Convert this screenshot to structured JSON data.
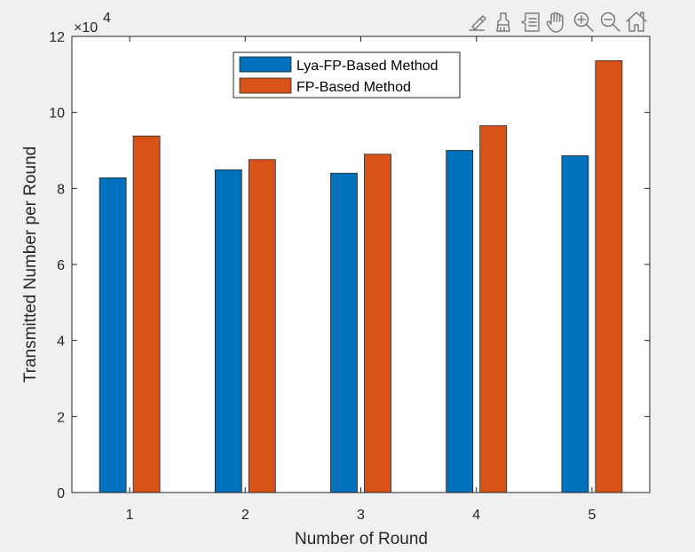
{
  "chart_data": {
    "type": "bar",
    "categories": [
      "1",
      "2",
      "3",
      "4",
      "5"
    ],
    "series": [
      {
        "name": "Lya-FP-Based Method",
        "color": "#0072BD",
        "values": [
          82800,
          84900,
          84000,
          90000,
          88600
        ]
      },
      {
        "name": "FP-Based Method",
        "color": "#D95319",
        "values": [
          93800,
          87600,
          89000,
          96500,
          113600
        ]
      }
    ],
    "title": "",
    "xlabel": "Number of Round",
    "ylabel": "Transmitted Number per Round",
    "ylim": [
      0,
      120000
    ],
    "yticks": [
      0,
      20000,
      40000,
      60000,
      80000,
      100000,
      120000
    ],
    "ytick_labels": [
      "0",
      "2",
      "4",
      "6",
      "8",
      "10",
      "12"
    ],
    "y_exponent": {
      "base": "×10",
      "power": "4"
    },
    "grid": false,
    "legend_position": "top-center"
  },
  "toolbar": {
    "icons": [
      "brush-pen-icon",
      "brush-icon",
      "data-tips-icon",
      "pan-hand-icon",
      "zoom-in-icon",
      "zoom-out-icon",
      "home-icon"
    ]
  }
}
